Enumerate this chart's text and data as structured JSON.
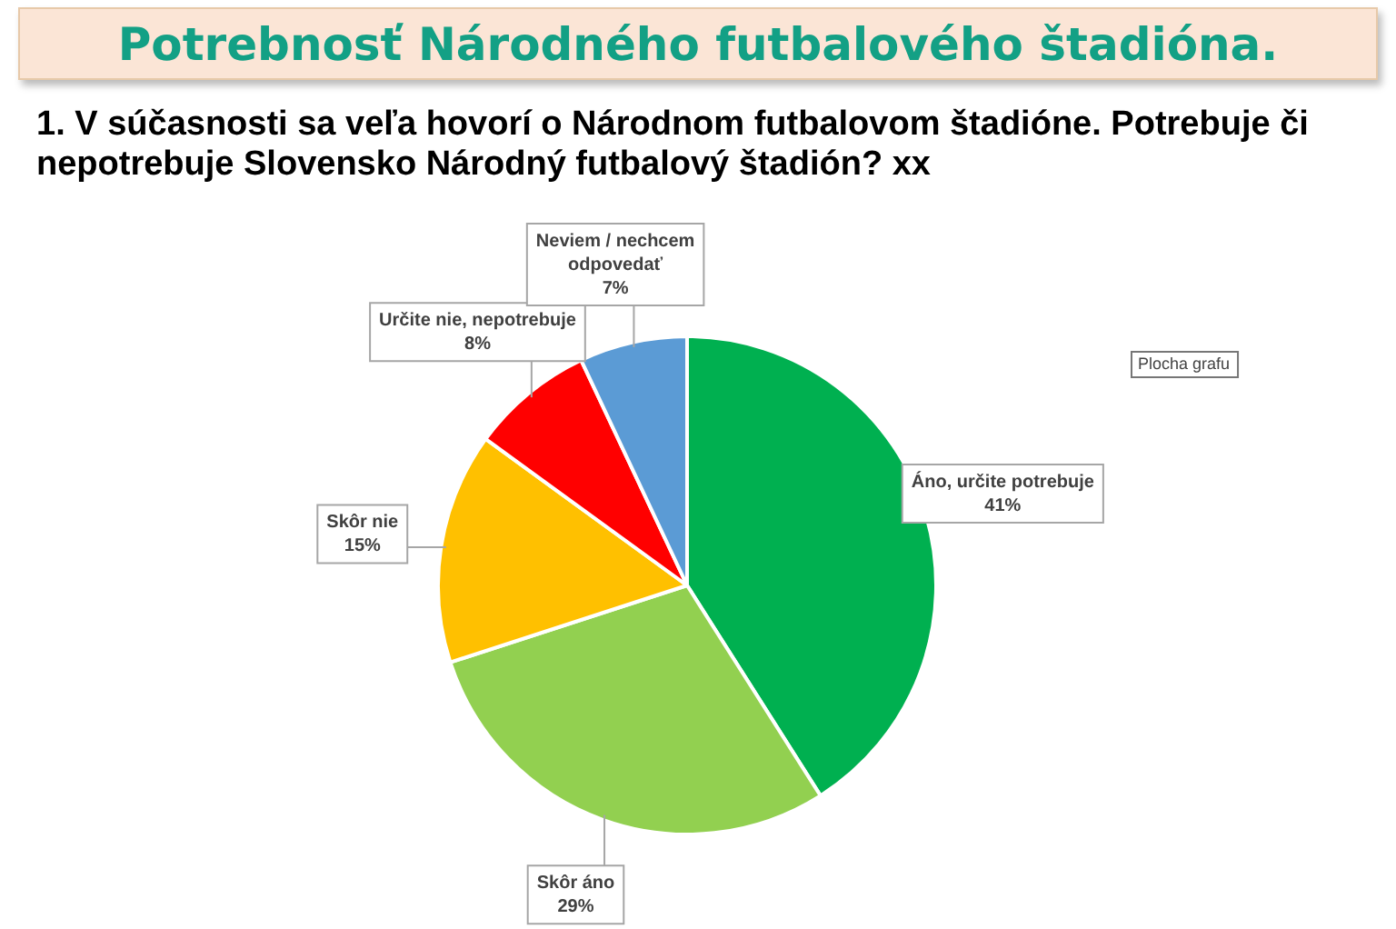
{
  "chart_data": {
    "type": "pie",
    "title": "Potrebnosť Národného futbalového štadióna.",
    "subtitle": "1. V súčasnosti sa veľa hovorí o Národnom futbalovom štadióne. Potrebuje či nepotrebuje Slovensko Národný futbalový štadión? xx",
    "categories": [
      "Áno, určite potrebuje",
      "Skôr áno",
      "Skôr nie",
      "Určite nie, nepotrebuje",
      "Neviem / nechcem odpovedať"
    ],
    "values": [
      41,
      29,
      15,
      8,
      7
    ],
    "value_labels": [
      "41%",
      "29%",
      "15%",
      "8%",
      "7%"
    ],
    "colors": [
      "#00b050",
      "#92d050",
      "#ffc000",
      "#ff0000",
      "#5b9bd5"
    ],
    "annotations": [
      "Plocha grafu"
    ],
    "legend": false
  }
}
